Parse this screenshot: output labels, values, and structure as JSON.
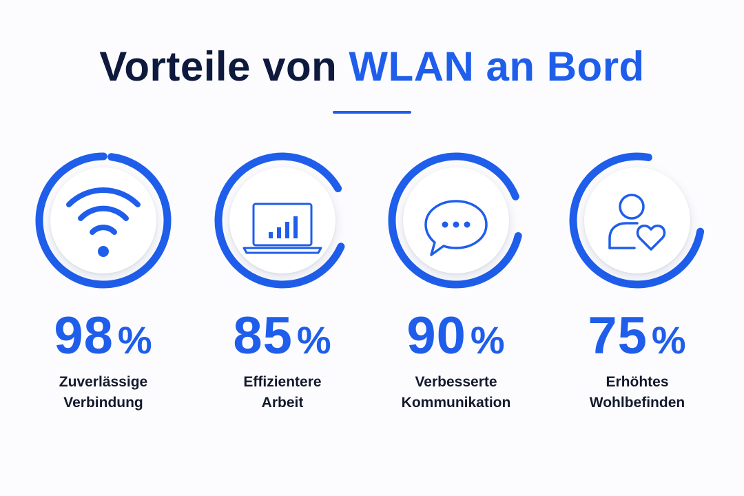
{
  "title": {
    "prefix": "Vorteile von",
    "highlight": "WLAN an Bord"
  },
  "colors": {
    "accent": "#1f5eea",
    "track": "#eef1f8",
    "text": "#141a2e",
    "title": "#0d1a3d"
  },
  "chart_data": {
    "type": "radial-progress",
    "title": "Vorteile von WLAN an Bord",
    "unit": "%",
    "items": [
      {
        "icon": "wifi-icon",
        "value": 98,
        "label_lines": [
          "Zuverlässige",
          "Verbindung"
        ]
      },
      {
        "icon": "laptop-chart-icon",
        "value": 85,
        "label_lines": [
          "Effizientere",
          "Arbeit"
        ]
      },
      {
        "icon": "chat-bubble-icon",
        "value": 90,
        "label_lines": [
          "Verbesserte",
          "Kommunikation"
        ]
      },
      {
        "icon": "user-heart-icon",
        "value": 75,
        "label_lines": [
          "Erhöhtes",
          "Wohlbefinden"
        ]
      }
    ]
  }
}
